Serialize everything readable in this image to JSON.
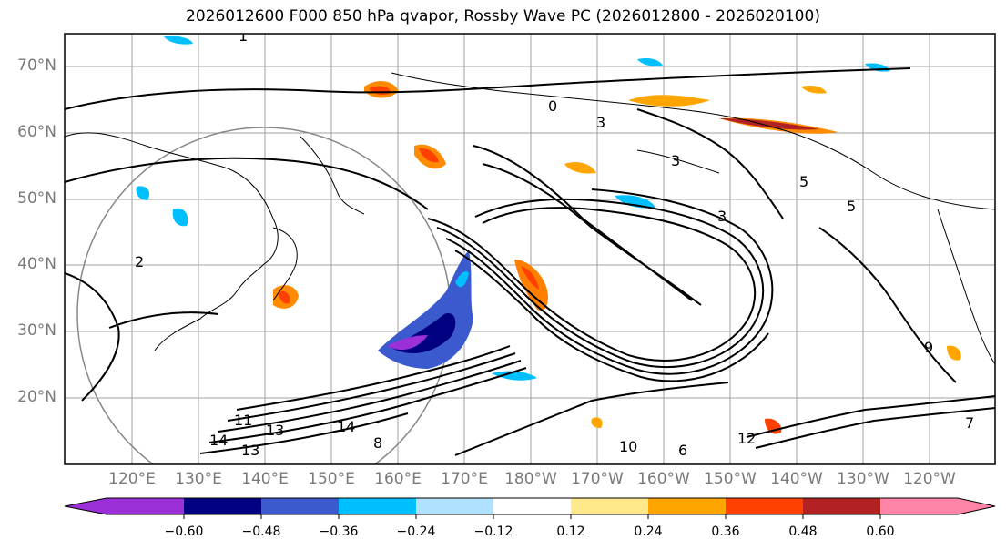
{
  "title": "2026012600 F000 850 hPa qvapor, Rossby Wave PC (2026012800 - 2026020100)",
  "lat_labels": [
    "70°N",
    "60°N",
    "50°N",
    "40°N",
    "30°N",
    "20°N"
  ],
  "lon_labels": [
    "120°E",
    "130°E",
    "140°E",
    "150°E",
    "160°E",
    "170°E",
    "180°W",
    "170°W",
    "160°W",
    "150°W",
    "140°W",
    "130°W",
    "120°W"
  ],
  "colorbar": {
    "colors": [
      "#9b30d9",
      "#000080",
      "#3a5acd",
      "#00bfff",
      "#b0e2ff",
      "#ffffff",
      "#ffe98a",
      "#ffa500",
      "#ff4000",
      "#b22222",
      "#ff85a8"
    ],
    "tick_labels": [
      "−0.60",
      "−0.48",
      "−0.36",
      "−0.24",
      "−0.12",
      "0.12",
      "0.24",
      "0.36",
      "0.48",
      "0.60"
    ]
  },
  "contour_labels": [
    "1",
    "0",
    "3",
    "3",
    "3",
    "5",
    "5",
    "11",
    "13",
    "14",
    "13",
    "14",
    "10",
    "12",
    "2",
    "9",
    "8",
    "7",
    "6"
  ]
}
